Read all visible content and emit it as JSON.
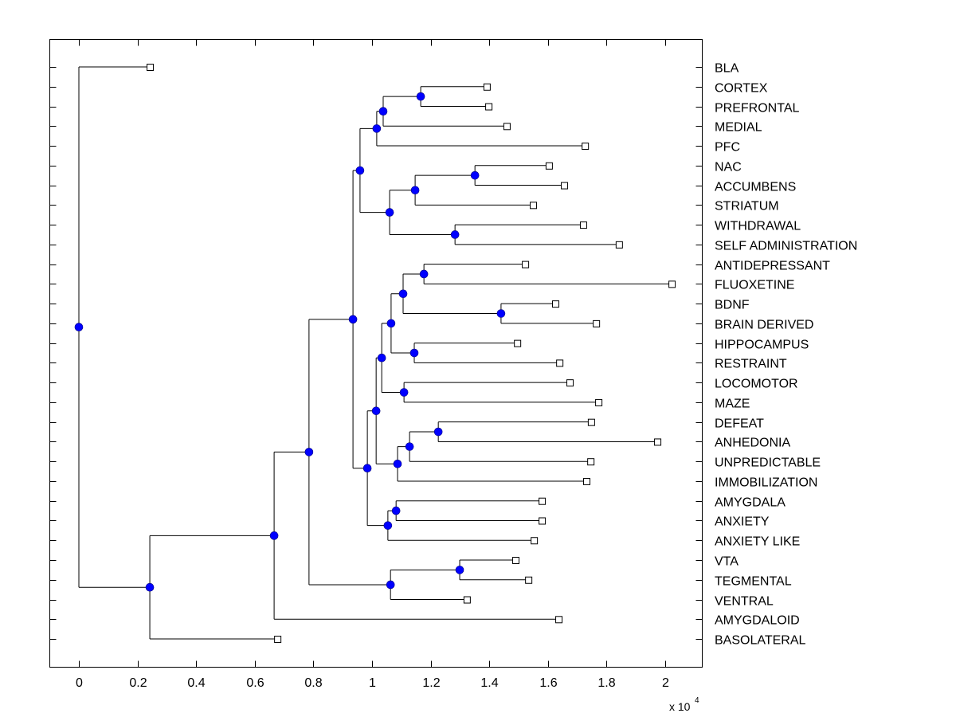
{
  "chart_data": {
    "type": "dendrogram",
    "title": "",
    "xlabel": "",
    "ylabel": "",
    "x_scale_multiplier_label": "x 10",
    "x_scale_exponent": "4",
    "xlim": [
      -0.1,
      2.13
    ],
    "xticks": [
      0,
      0.2,
      0.4,
      0.6,
      0.8,
      1,
      1.2,
      1.4,
      1.6,
      1.8,
      2
    ],
    "xtick_labels": [
      "0",
      "0.2",
      "0.4",
      "0.6",
      "0.8",
      "1",
      "1.2",
      "1.4",
      "1.6",
      "1.8",
      "2"
    ],
    "grid": false,
    "leaf_label_position": "right",
    "node_color": "#0000ff",
    "leaf_marker": "open-square",
    "leaves": [
      {
        "label": "BLA",
        "x": 0.242
      },
      {
        "label": "CORTEX",
        "x": 1.391
      },
      {
        "label": "PREFRONTAL",
        "x": 1.397
      },
      {
        "label": "MEDIAL",
        "x": 1.459
      },
      {
        "label": "PFC",
        "x": 1.726
      },
      {
        "label": "NAC",
        "x": 1.603
      },
      {
        "label": "ACCUMBENS",
        "x": 1.655
      },
      {
        "label": "STRIATUM",
        "x": 1.549
      },
      {
        "label": "WITHDRAWAL",
        "x": 1.72
      },
      {
        "label": "SELF ADMINISTRATION",
        "x": 1.842
      },
      {
        "label": "ANTIDEPRESSANT",
        "x": 1.522
      },
      {
        "label": "FLUOXETINE",
        "x": 2.022
      },
      {
        "label": "BDNF",
        "x": 1.625
      },
      {
        "label": "BRAIN DERIVED",
        "x": 1.764
      },
      {
        "label": "HIPPOCAMPUS",
        "x": 1.495
      },
      {
        "label": "RESTRAINT",
        "x": 1.639
      },
      {
        "label": "LOCOMOTOR",
        "x": 1.674
      },
      {
        "label": "MAZE",
        "x": 1.772
      },
      {
        "label": "DEFEAT",
        "x": 1.747
      },
      {
        "label": "ANHEDONIA",
        "x": 1.973
      },
      {
        "label": "UNPREDICTABLE",
        "x": 1.745
      },
      {
        "label": "IMMOBILIZATION",
        "x": 1.731
      },
      {
        "label": "AMYGDALA",
        "x": 1.579
      },
      {
        "label": "ANXIETY",
        "x": 1.579
      },
      {
        "label": "ANXIETY LIKE",
        "x": 1.552
      },
      {
        "label": "VTA",
        "x": 1.489
      },
      {
        "label": "TEGMENTAL",
        "x": 1.533
      },
      {
        "label": "VENTRAL",
        "x": 1.323
      },
      {
        "label": "AMYGDALOID",
        "x": 1.636
      },
      {
        "label": "BASOLATERAL",
        "x": 0.677
      }
    ],
    "tree": {
      "x": 0.0,
      "children": [
        {
          "leaf": 0
        },
        {
          "x": 0.242,
          "children": [
            {
              "x": 0.666,
              "children": [
                {
                  "x": 0.785,
                  "children": [
                    {
                      "x": 0.935,
                      "children": [
                        {
                          "x": 0.959,
                          "children": [
                            {
                              "x": 1.016,
                              "children": [
                                {
                                  "x": 1.038,
                                  "children": [
                                    {
                                      "x": 1.166,
                                      "children": [
                                        {
                                          "leaf": 1
                                        },
                                        {
                                          "leaf": 2
                                        }
                                      ]
                                    },
                                    {
                                      "leaf": 3
                                    }
                                  ]
                                },
                                {
                                  "leaf": 4
                                }
                              ]
                            },
                            {
                              "x": 1.06,
                              "children": [
                                {
                                  "x": 1.147,
                                  "children": [
                                    {
                                      "x": 1.351,
                                      "children": [
                                        {
                                          "leaf": 5
                                        },
                                        {
                                          "leaf": 6
                                        }
                                      ]
                                    },
                                    {
                                      "leaf": 7
                                    }
                                  ]
                                },
                                {
                                  "x": 1.283,
                                  "children": [
                                    {
                                      "leaf": 8
                                    },
                                    {
                                      "leaf": 9
                                    }
                                  ]
                                }
                              ]
                            }
                          ]
                        },
                        {
                          "x": 0.984,
                          "children": [
                            {
                              "x": 1.014,
                              "children": [
                                {
                                  "x": 1.033,
                                  "children": [
                                    {
                                      "x": 1.065,
                                      "children": [
                                        {
                                          "x": 1.106,
                                          "children": [
                                            {
                                              "x": 1.177,
                                              "children": [
                                                {
                                                  "leaf": 10
                                                },
                                                {
                                                  "leaf": 11
                                                }
                                              ]
                                            },
                                            {
                                              "x": 1.44,
                                              "children": [
                                                {
                                                  "leaf": 12
                                                },
                                                {
                                                  "leaf": 13
                                                }
                                              ]
                                            }
                                          ]
                                        },
                                        {
                                          "x": 1.144,
                                          "children": [
                                            {
                                              "leaf": 14
                                            },
                                            {
                                              "leaf": 15
                                            }
                                          ]
                                        }
                                      ]
                                    },
                                    {
                                      "x": 1.109,
                                      "children": [
                                        {
                                          "leaf": 16
                                        },
                                        {
                                          "leaf": 17
                                        }
                                      ]
                                    }
                                  ]
                                },
                                {
                                  "x": 1.087,
                                  "children": [
                                    {
                                      "x": 1.128,
                                      "children": [
                                        {
                                          "x": 1.226,
                                          "children": [
                                            {
                                              "leaf": 18
                                            },
                                            {
                                              "leaf": 19
                                            }
                                          ]
                                        },
                                        {
                                          "leaf": 20
                                        }
                                      ]
                                    },
                                    {
                                      "leaf": 21
                                    }
                                  ]
                                }
                              ]
                            },
                            {
                              "x": 1.054,
                              "children": [
                                {
                                  "x": 1.082,
                                  "children": [
                                    {
                                      "leaf": 22
                                    },
                                    {
                                      "leaf": 23
                                    }
                                  ]
                                },
                                {
                                  "leaf": 24
                                }
                              ]
                            }
                          ]
                        }
                      ]
                    },
                    {
                      "x": 1.063,
                      "children": [
                        {
                          "x": 1.299,
                          "children": [
                            {
                              "leaf": 25
                            },
                            {
                              "leaf": 26
                            }
                          ]
                        },
                        {
                          "leaf": 27
                        }
                      ]
                    }
                  ]
                },
                {
                  "leaf": 28
                }
              ]
            },
            {
              "leaf": 29
            }
          ]
        }
      ]
    }
  }
}
